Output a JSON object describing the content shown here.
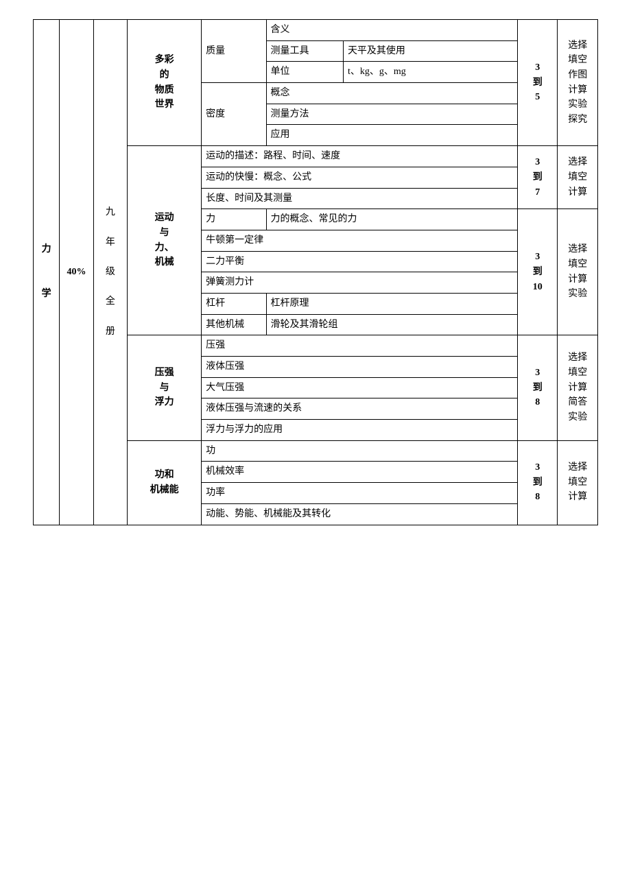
{
  "col1": {
    "subject": "力",
    "subject2": "学"
  },
  "col2": {
    "percent": "40%"
  },
  "col3": {
    "l1": "九",
    "l2": "年",
    "l3": "级",
    "l4": "全",
    "l5": "册"
  },
  "chapters": {
    "colorful": {
      "l1": "多彩",
      "l2": "的",
      "l3": "物质",
      "l4": "世界"
    },
    "motion": {
      "l1": "运动",
      "l2": "与",
      "l3": "力、",
      "l4": "机械"
    },
    "pressure": {
      "l1": "压强",
      "l2": "与",
      "l3": "浮力"
    },
    "work": {
      "l1": "功和",
      "l2": "机械能"
    }
  },
  "c1": {
    "mass": "质量",
    "mass_def": "含义",
    "mass_tool_lbl": "测量工具",
    "mass_tool_val": "天平及其使用",
    "mass_unit_lbl": "单位",
    "mass_unit_val": "t、kg、g、mg",
    "density": "密度",
    "density_concept": "概念",
    "density_method": "测量方法",
    "density_app": "应用",
    "score": {
      "a": "3",
      "b": "到",
      "c": "5"
    },
    "types": {
      "a": "选择",
      "b": "填空",
      "c": "作图",
      "d": "计算",
      "e": "实验",
      "f": "探究"
    }
  },
  "c2": {
    "desc": "运动的描述：路程、时间、速度",
    "speed": "运动的快慢：概念、公式",
    "measure": "长度、时间及其测量",
    "force_lbl": "力",
    "force_val": "力的概念、常见的力",
    "newton": "牛顿第一定律",
    "balance": "二力平衡",
    "spring": "弹簧测力计",
    "lever_lbl": "杠杆",
    "lever_val": "杠杆原理",
    "other_lbl": "其他机械",
    "other_val": "滑轮及其滑轮组",
    "score1": {
      "a": "3",
      "b": "到",
      "c": "7"
    },
    "types1": {
      "a": "选择",
      "b": "填空",
      "c": "计算"
    },
    "score2": {
      "a": "3",
      "b": "到",
      "c": "10"
    },
    "types2": {
      "a": "选择",
      "b": "填空",
      "c": "计算",
      "d": "实验"
    }
  },
  "c3": {
    "pressure": "压强",
    "liquid": "液体压强",
    "atmo": "大气压强",
    "flow": "液体压强与流速的关系",
    "buoy": "浮力与浮力的应用",
    "score": {
      "a": "3",
      "b": "到",
      "c": "8"
    },
    "types": {
      "a": "选择",
      "b": "填空",
      "c": "计算",
      "d": "简答",
      "e": "实验"
    }
  },
  "c4": {
    "work": "功",
    "eff": "机械效率",
    "power": "功率",
    "energy": "动能、势能、机械能及其转化",
    "score": {
      "a": "3",
      "b": "到",
      "c": "8"
    },
    "types": {
      "a": "选择",
      "b": "填空",
      "c": "计算"
    }
  }
}
